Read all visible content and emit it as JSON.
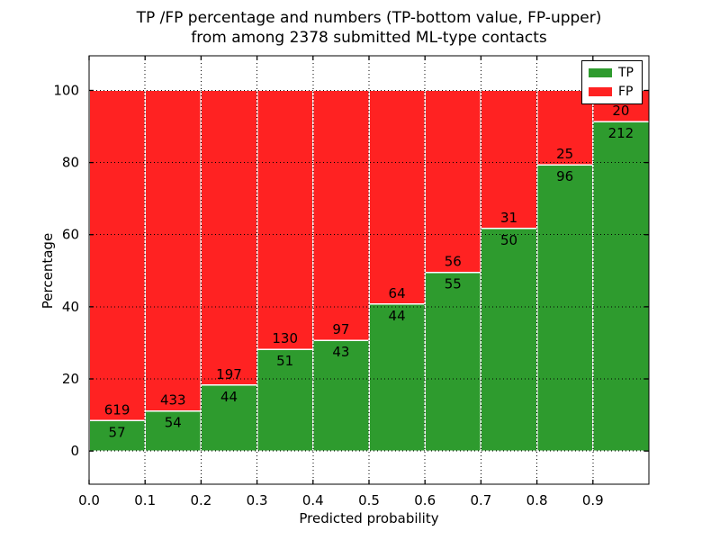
{
  "figure": {
    "title_line1": "TP /FP percentage and numbers (TP-bottom value, FP-upper)",
    "title_line2": "from among 2378 submitted ML-type contacts",
    "xlabel": "Predicted probability",
    "ylabel": "Percentage"
  },
  "legend": {
    "items": [
      {
        "label": "TP",
        "color": "#2e9b2e"
      },
      {
        "label": "FP",
        "color": "#ff2222"
      }
    ]
  },
  "chart_data": {
    "type": "bar",
    "stacked": true,
    "normalized_to_percent": true,
    "title": "TP /FP percentage and numbers (TP-bottom value, FP-upper) from among 2378 submitted ML-type contacts",
    "xlabel": "Predicted probability",
    "ylabel": "Percentage",
    "total_contacts": 2378,
    "categories": [
      "0.0-0.1",
      "0.1-0.2",
      "0.2-0.3",
      "0.3-0.4",
      "0.4-0.5",
      "0.5-0.6",
      "0.6-0.7",
      "0.7-0.8",
      "0.8-0.9",
      "0.9-1.0"
    ],
    "series": [
      {
        "name": "TP",
        "color": "#2e9b2e",
        "counts": [
          57,
          54,
          44,
          51,
          43,
          44,
          55,
          50,
          96,
          212
        ]
      },
      {
        "name": "FP",
        "color": "#ff2222",
        "counts": [
          619,
          433,
          197,
          130,
          97,
          64,
          56,
          31,
          25,
          20
        ]
      }
    ],
    "xtick_labels": [
      "0.0",
      "0.1",
      "0.2",
      "0.3",
      "0.4",
      "0.5",
      "0.6",
      "0.7",
      "0.8",
      "0.9"
    ],
    "ytick_values": [
      0,
      20,
      40,
      60,
      80,
      100
    ],
    "ytick_labels": [
      "0",
      "20",
      "40",
      "60",
      "80",
      "100"
    ],
    "xlim": [
      0.0,
      1.0
    ],
    "ylim": [
      -9.2,
      109.6
    ],
    "grid": "dotted",
    "bar_edge_color": "#ffffff",
    "legend_position": "upper right"
  }
}
